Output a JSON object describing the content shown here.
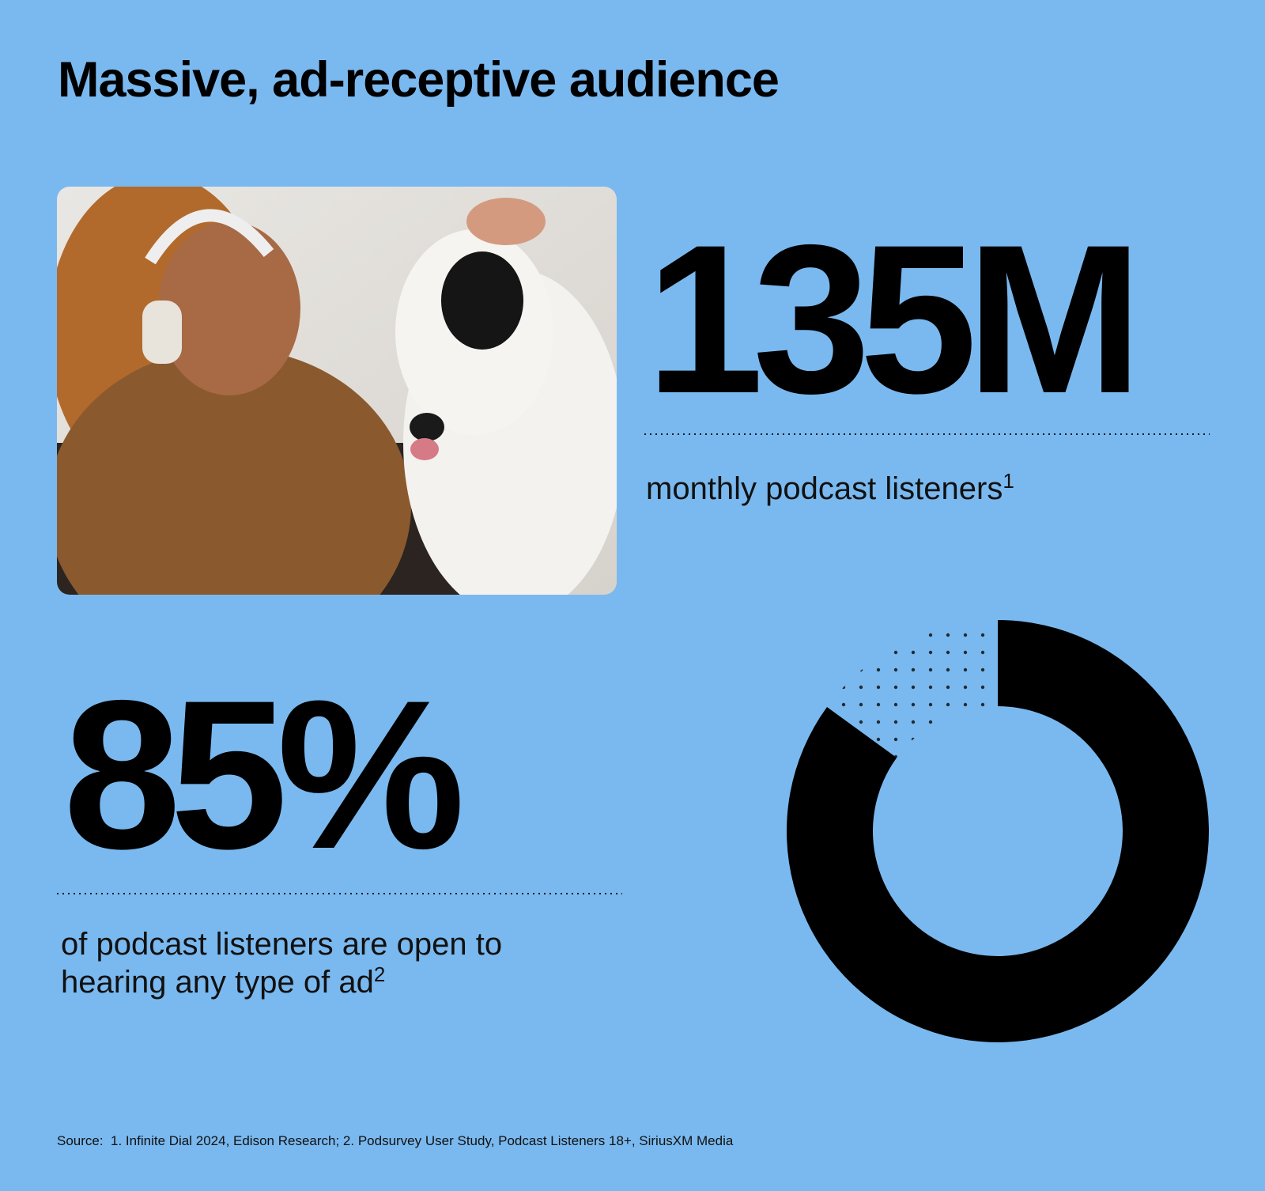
{
  "title": "Massive, ad-receptive audience",
  "stats": [
    {
      "value": "135M",
      "caption": [
        "monthly podcast listeners"
      ],
      "footnote": "1"
    }
  ],
  "chart_data": {
    "type": "donut",
    "values": [
      85
    ],
    "value_labels": [
      "85%"
    ],
    "color": "#000000",
    "caption": [
      "of podcast listeners are open to",
      "hearing any type of ad"
    ],
    "footnote": "2"
  },
  "source": "Source:  1. Infinite Dial 2024, Edison Research; 2. Podsurvey User Study, Podcast Listeners 18+, SiriusXM Media"
}
